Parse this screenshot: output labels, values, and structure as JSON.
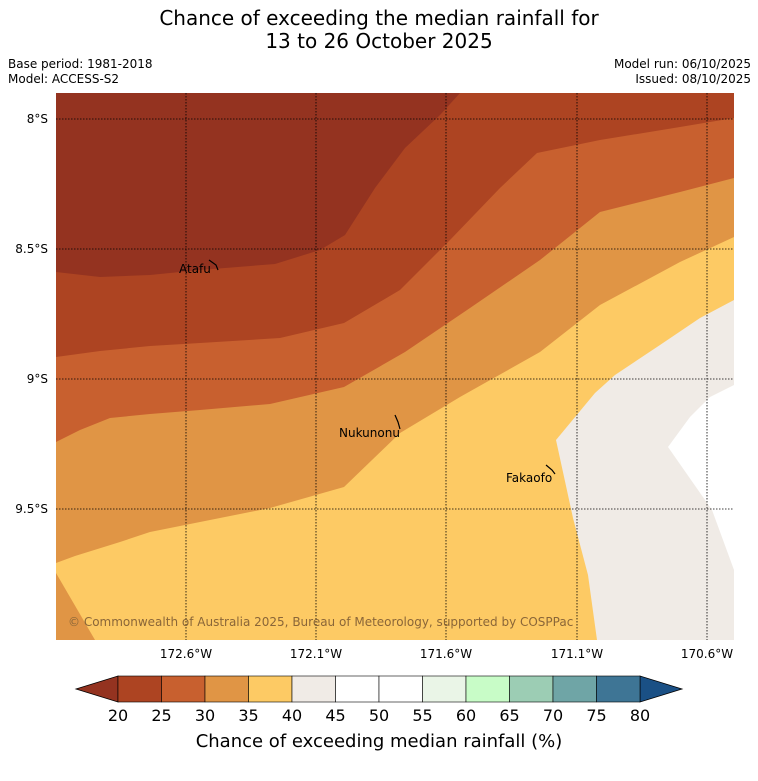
{
  "title_line1": "Chance of exceeding the median rainfall for",
  "title_line2": "13 to 26 October 2025",
  "meta_left": [
    "Base period: 1981-2018",
    "Model: ACCESS-S2"
  ],
  "meta_right": [
    "Model run: 06/10/2025",
    "Issued: 08/10/2025"
  ],
  "lat_labels": [
    "8°S",
    "8.5°S",
    "9°S",
    "9.5°S"
  ],
  "lon_labels": [
    "172.6°W",
    "172.1°W",
    "171.6°W",
    "171.1°W",
    "170.6°W"
  ],
  "places": [
    {
      "name": "Atafu",
      "lat": -8.58,
      "lon": -172.49
    },
    {
      "name": "Nukunonu",
      "lat": -9.19,
      "lon": -171.81
    },
    {
      "name": "Fakaofo",
      "lat": -9.37,
      "lon": -171.22
    }
  ],
  "copyright": "© Commonwealth of Australia 2025, Bureau of Meteorology, supported by COSPPac",
  "colorbar": {
    "title": "Chance of exceeding median rainfall (%)",
    "ticks": [
      "20",
      "25",
      "30",
      "35",
      "40",
      "45",
      "50",
      "55",
      "60",
      "65",
      "70",
      "75",
      "80"
    ],
    "colors": [
      "#ad4422",
      "#c8602f",
      "#e09545",
      "#fdca64",
      "#f0ebe6",
      "#ffffff",
      "#ffffff",
      "#eaf5e7",
      "#c8fcc7",
      "#9ccdb4",
      "#6fa5a6",
      "#3e7595"
    ],
    "under_color": "#943320",
    "over_color": "#1a5085"
  },
  "map_colors": {
    "below_20": "#943320",
    "20_25": "#ad4422",
    "25_30": "#c8602f",
    "30_35": "#e09545",
    "35_40": "#fdca64",
    "40_45": "#f0ebe6",
    "45_50": "#ffffff"
  }
}
